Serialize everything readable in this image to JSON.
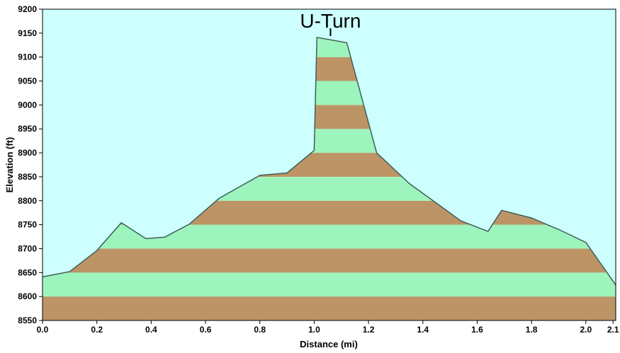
{
  "chart_data": {
    "type": "area",
    "xlabel": "Distance   (mi)",
    "ylabel": "Elevation (ft)",
    "xlim": [
      0,
      2.11
    ],
    "ylim": [
      8550,
      9200
    ],
    "x_ticks": [
      "0.0",
      "0.2",
      "0.4",
      "0.6",
      "0.8",
      "1.0",
      "1.2",
      "1.4",
      "1.6",
      "1.8",
      "2.0",
      "2.1"
    ],
    "x_tick_values": [
      0.0,
      0.2,
      0.4,
      0.6,
      0.8,
      1.0,
      1.2,
      1.4,
      1.6,
      1.8,
      2.0,
      2.1
    ],
    "y_ticks": [
      "8550",
      "8600",
      "8650",
      "8700",
      "8750",
      "8800",
      "8850",
      "8900",
      "8950",
      "9000",
      "9050",
      "9100",
      "9150",
      "9200"
    ],
    "y_tick_values": [
      8550,
      8600,
      8650,
      8700,
      8750,
      8800,
      8850,
      8900,
      8950,
      9000,
      9050,
      9100,
      9150,
      9200
    ],
    "band_size": 50,
    "grid": false,
    "x": [
      0.0,
      0.1,
      0.2,
      0.29,
      0.38,
      0.45,
      0.54,
      0.65,
      0.8,
      0.9,
      1.0,
      1.01,
      1.12,
      1.23,
      1.35,
      1.54,
      1.64,
      1.69,
      1.8,
      1.9,
      2.0,
      2.11
    ],
    "y": [
      8641,
      8652,
      8696,
      8754,
      8721,
      8724,
      8751,
      8805,
      8853,
      8858,
      8905,
      9141,
      9130,
      8900,
      8836,
      8758,
      8736,
      8780,
      8764,
      8740,
      8713,
      8624
    ],
    "annotation": {
      "label": "U-Turn",
      "x": 1.06
    },
    "colors": {
      "background": "#ccfffe",
      "band_light": "#9df5bd",
      "band_dark": "#bd9466",
      "outline": "#3f5f58",
      "frame": "#000000"
    }
  }
}
